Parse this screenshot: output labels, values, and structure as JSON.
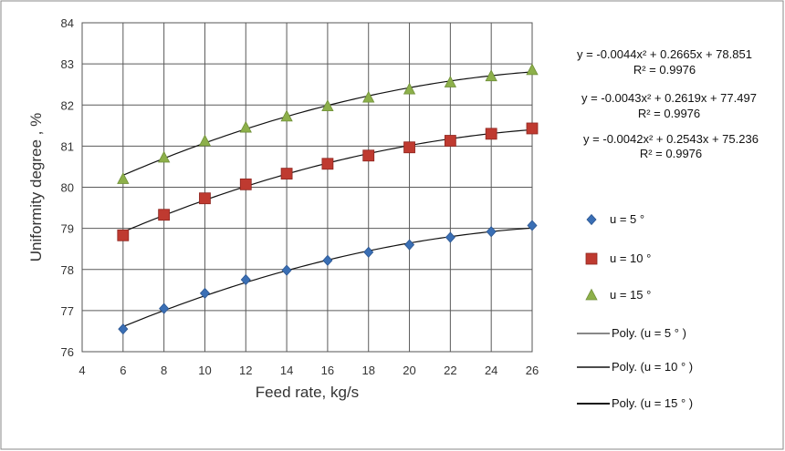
{
  "chart_data": {
    "type": "scatter",
    "xlabel": "Feed rate, kg/s",
    "ylabel": "Uniformity degree , %",
    "xlim": [
      4,
      26
    ],
    "ylim": [
      76,
      84
    ],
    "xticks": [
      4,
      6,
      8,
      10,
      12,
      14,
      16,
      18,
      20,
      22,
      24,
      26
    ],
    "yticks": [
      76,
      77,
      78,
      79,
      80,
      81,
      82,
      83,
      84
    ],
    "grid": true,
    "legend_position": "right",
    "x": [
      6,
      8,
      10,
      12,
      14,
      16,
      18,
      20,
      22,
      24,
      26
    ],
    "series": [
      {
        "name": "u = 5 °",
        "marker": "diamond",
        "color": "#3a6fb5",
        "values": [
          76.55,
          77.05,
          77.42,
          77.75,
          77.98,
          78.22,
          78.42,
          78.6,
          78.78,
          78.92,
          79.07
        ]
      },
      {
        "name": "u = 10 °",
        "marker": "square",
        "color": "#bf3a30",
        "values": [
          78.83,
          79.33,
          79.73,
          80.07,
          80.33,
          80.57,
          80.77,
          80.97,
          81.13,
          81.3,
          81.43
        ]
      },
      {
        "name": "u = 15 °",
        "marker": "triangle",
        "color": "#8db04a",
        "values": [
          80.2,
          80.72,
          81.12,
          81.45,
          81.72,
          81.97,
          82.18,
          82.38,
          82.55,
          82.7,
          82.85
        ]
      }
    ],
    "trendlines": [
      {
        "name": "Poly. (u = 5 ° )",
        "a": -0.0042,
        "b": 0.2543,
        "c": 75.236
      },
      {
        "name": "Poly. (u = 10 ° )",
        "a": -0.0043,
        "b": 0.2619,
        "c": 77.497
      },
      {
        "name": "Poly. (u = 15 ° )",
        "a": -0.0044,
        "b": 0.2665,
        "c": 78.851
      }
    ],
    "annotations": [
      {
        "equation": "y = -0.0044x² + 0.2665x + 78.851",
        "r2": "R² = 0.9976"
      },
      {
        "equation": "y = -0.0043x² + 0.2619x + 77.497",
        "r2": "R² = 0.9976"
      },
      {
        "equation": "y = -0.0042x² + 0.2543x + 75.236",
        "r2": "R² = 0.9976"
      }
    ]
  }
}
